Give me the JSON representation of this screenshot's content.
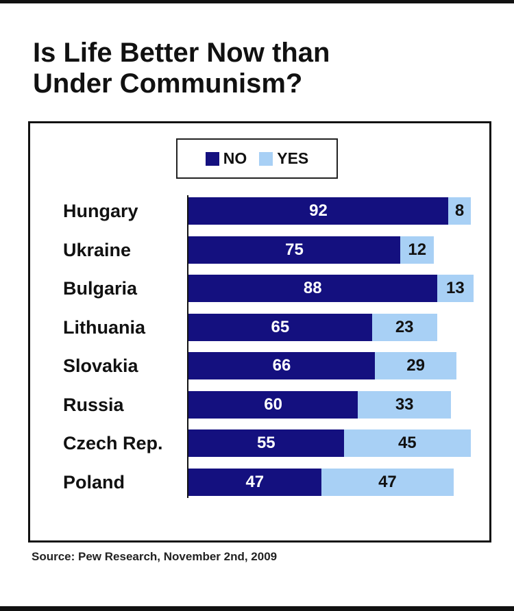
{
  "chart_data": {
    "type": "bar",
    "orientation": "horizontal",
    "stacked": true,
    "title": "Is Life Better Now than Under Communism?",
    "title_lines": [
      "Is Life Better Now than",
      "Under Communism?"
    ],
    "categories": [
      "Hungary",
      "Ukraine",
      "Bulgaria",
      "Lithuania",
      "Slovakia",
      "Russia",
      "Czech Rep.",
      "Poland"
    ],
    "series": [
      {
        "name": "NO",
        "color": "#14107f",
        "values": [
          92,
          75,
          88,
          65,
          66,
          60,
          55,
          47
        ]
      },
      {
        "name": "YES",
        "color": "#a8d0f5",
        "values": [
          8,
          12,
          13,
          23,
          29,
          33,
          45,
          47
        ]
      }
    ],
    "xlim": [
      0,
      100
    ],
    "legend_position": "top-center",
    "grid": false,
    "source": "Source: Pew Research, November 2nd, 2009"
  }
}
